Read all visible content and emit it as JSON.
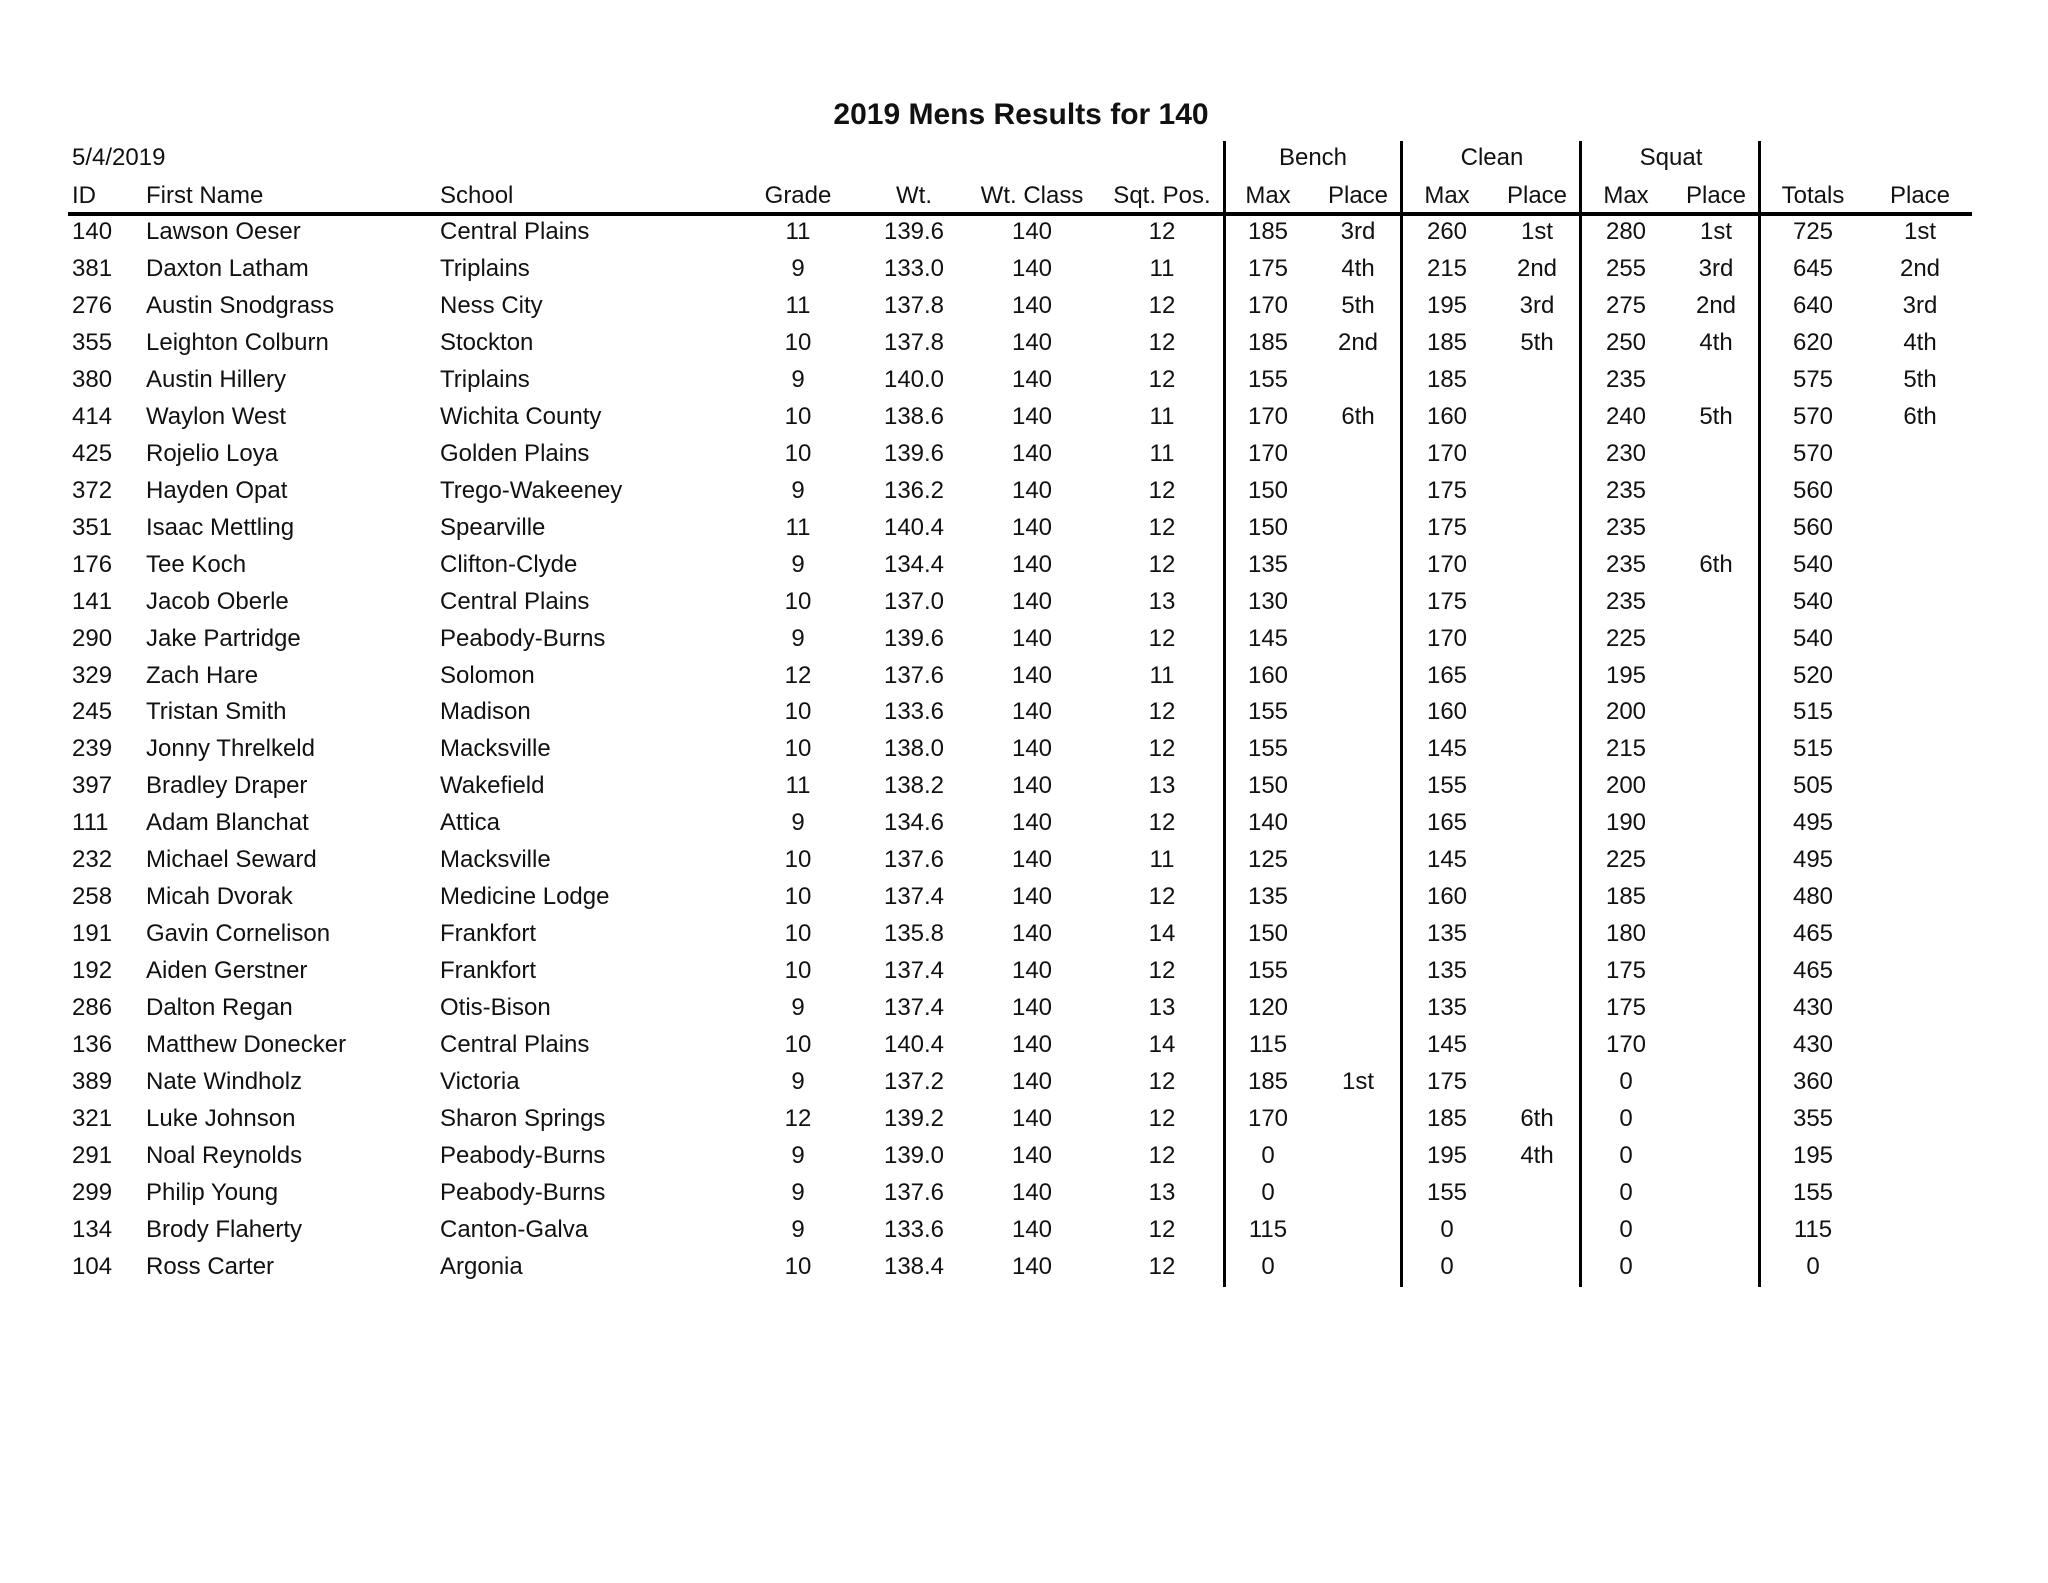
{
  "title": "2019 Mens Results for 140",
  "date": "5/4/2019",
  "groups": {
    "bench": "Bench",
    "clean": "Clean",
    "squat": "Squat"
  },
  "headers": [
    "ID",
    "First Name",
    "School",
    "Grade",
    "Wt.",
    "Wt. Class",
    "Sqt. Pos.",
    "Max",
    "Place",
    "Max",
    "Place",
    "Max",
    "Place",
    "Totals",
    "Place"
  ],
  "rows": [
    [
      "140",
      "Lawson Oeser",
      "Central Plains",
      "11",
      "139.6",
      "140",
      "12",
      "185",
      "3rd",
      "260",
      "1st",
      "280",
      "1st",
      "725",
      "1st"
    ],
    [
      "381",
      "Daxton Latham",
      "Triplains",
      "9",
      "133.0",
      "140",
      "11",
      "175",
      "4th",
      "215",
      "2nd",
      "255",
      "3rd",
      "645",
      "2nd"
    ],
    [
      "276",
      "Austin Snodgrass",
      "Ness City",
      "11",
      "137.8",
      "140",
      "12",
      "170",
      "5th",
      "195",
      "3rd",
      "275",
      "2nd",
      "640",
      "3rd"
    ],
    [
      "355",
      "Leighton Colburn",
      "Stockton",
      "10",
      "137.8",
      "140",
      "12",
      "185",
      "2nd",
      "185",
      "5th",
      "250",
      "4th",
      "620",
      "4th"
    ],
    [
      "380",
      "Austin Hillery",
      "Triplains",
      "9",
      "140.0",
      "140",
      "12",
      "155",
      "",
      "185",
      "",
      "235",
      "",
      "575",
      "5th"
    ],
    [
      "414",
      "Waylon West",
      "Wichita County",
      "10",
      "138.6",
      "140",
      "11",
      "170",
      "6th",
      "160",
      "",
      "240",
      "5th",
      "570",
      "6th"
    ],
    [
      "425",
      "Rojelio Loya",
      "Golden Plains",
      "10",
      "139.6",
      "140",
      "11",
      "170",
      "",
      "170",
      "",
      "230",
      "",
      "570",
      ""
    ],
    [
      "372",
      "Hayden Opat",
      "Trego-Wakeeney",
      "9",
      "136.2",
      "140",
      "12",
      "150",
      "",
      "175",
      "",
      "235",
      "",
      "560",
      ""
    ],
    [
      "351",
      "Isaac Mettling",
      "Spearville",
      "11",
      "140.4",
      "140",
      "12",
      "150",
      "",
      "175",
      "",
      "235",
      "",
      "560",
      ""
    ],
    [
      "176",
      "Tee Koch",
      "Clifton-Clyde",
      "9",
      "134.4",
      "140",
      "12",
      "135",
      "",
      "170",
      "",
      "235",
      "6th",
      "540",
      ""
    ],
    [
      "141",
      "Jacob Oberle",
      "Central Plains",
      "10",
      "137.0",
      "140",
      "13",
      "130",
      "",
      "175",
      "",
      "235",
      "",
      "540",
      ""
    ],
    [
      "290",
      "Jake Partridge",
      "Peabody-Burns",
      "9",
      "139.6",
      "140",
      "12",
      "145",
      "",
      "170",
      "",
      "225",
      "",
      "540",
      ""
    ],
    [
      "329",
      "Zach Hare",
      "Solomon",
      "12",
      "137.6",
      "140",
      "11",
      "160",
      "",
      "165",
      "",
      "195",
      "",
      "520",
      ""
    ],
    [
      "245",
      "Tristan Smith",
      "Madison",
      "10",
      "133.6",
      "140",
      "12",
      "155",
      "",
      "160",
      "",
      "200",
      "",
      "515",
      ""
    ],
    [
      "239",
      "Jonny Threlkeld",
      "Macksville",
      "10",
      "138.0",
      "140",
      "12",
      "155",
      "",
      "145",
      "",
      "215",
      "",
      "515",
      ""
    ],
    [
      "397",
      "Bradley Draper",
      "Wakefield",
      "11",
      "138.2",
      "140",
      "13",
      "150",
      "",
      "155",
      "",
      "200",
      "",
      "505",
      ""
    ],
    [
      "111",
      "Adam Blanchat",
      "Attica",
      "9",
      "134.6",
      "140",
      "12",
      "140",
      "",
      "165",
      "",
      "190",
      "",
      "495",
      ""
    ],
    [
      "232",
      "Michael Seward",
      "Macksville",
      "10",
      "137.6",
      "140",
      "11",
      "125",
      "",
      "145",
      "",
      "225",
      "",
      "495",
      ""
    ],
    [
      "258",
      "Micah Dvorak",
      "Medicine Lodge",
      "10",
      "137.4",
      "140",
      "12",
      "135",
      "",
      "160",
      "",
      "185",
      "",
      "480",
      ""
    ],
    [
      "191",
      "Gavin Cornelison",
      "Frankfort",
      "10",
      "135.8",
      "140",
      "14",
      "150",
      "",
      "135",
      "",
      "180",
      "",
      "465",
      ""
    ],
    [
      "192",
      "Aiden Gerstner",
      "Frankfort",
      "10",
      "137.4",
      "140",
      "12",
      "155",
      "",
      "135",
      "",
      "175",
      "",
      "465",
      ""
    ],
    [
      "286",
      "Dalton Regan",
      "Otis-Bison",
      "9",
      "137.4",
      "140",
      "13",
      "120",
      "",
      "135",
      "",
      "175",
      "",
      "430",
      ""
    ],
    [
      "136",
      "Matthew Donecker",
      "Central Plains",
      "10",
      "140.4",
      "140",
      "14",
      "115",
      "",
      "145",
      "",
      "170",
      "",
      "430",
      ""
    ],
    [
      "389",
      "Nate Windholz",
      "Victoria",
      "9",
      "137.2",
      "140",
      "12",
      "185",
      "1st",
      "175",
      "",
      "0",
      "",
      "360",
      ""
    ],
    [
      "321",
      "Luke Johnson",
      "Sharon Springs",
      "12",
      "139.2",
      "140",
      "12",
      "170",
      "",
      "185",
      "6th",
      "0",
      "",
      "355",
      ""
    ],
    [
      "291",
      "Noal Reynolds",
      "Peabody-Burns",
      "9",
      "139.0",
      "140",
      "12",
      "0",
      "",
      "195",
      "4th",
      "0",
      "",
      "195",
      ""
    ],
    [
      "299",
      "Philip Young",
      "Peabody-Burns",
      "9",
      "137.6",
      "140",
      "13",
      "0",
      "",
      "155",
      "",
      "0",
      "",
      "155",
      ""
    ],
    [
      "134",
      "Brody Flaherty",
      "Canton-Galva",
      "9",
      "133.6",
      "140",
      "12",
      "115",
      "",
      "0",
      "",
      "0",
      "",
      "115",
      ""
    ],
    [
      "104",
      "Ross Carter",
      "Argonia",
      "10",
      "138.4",
      "140",
      "12",
      "0",
      "",
      "0",
      "",
      "0",
      "",
      "0",
      ""
    ]
  ]
}
